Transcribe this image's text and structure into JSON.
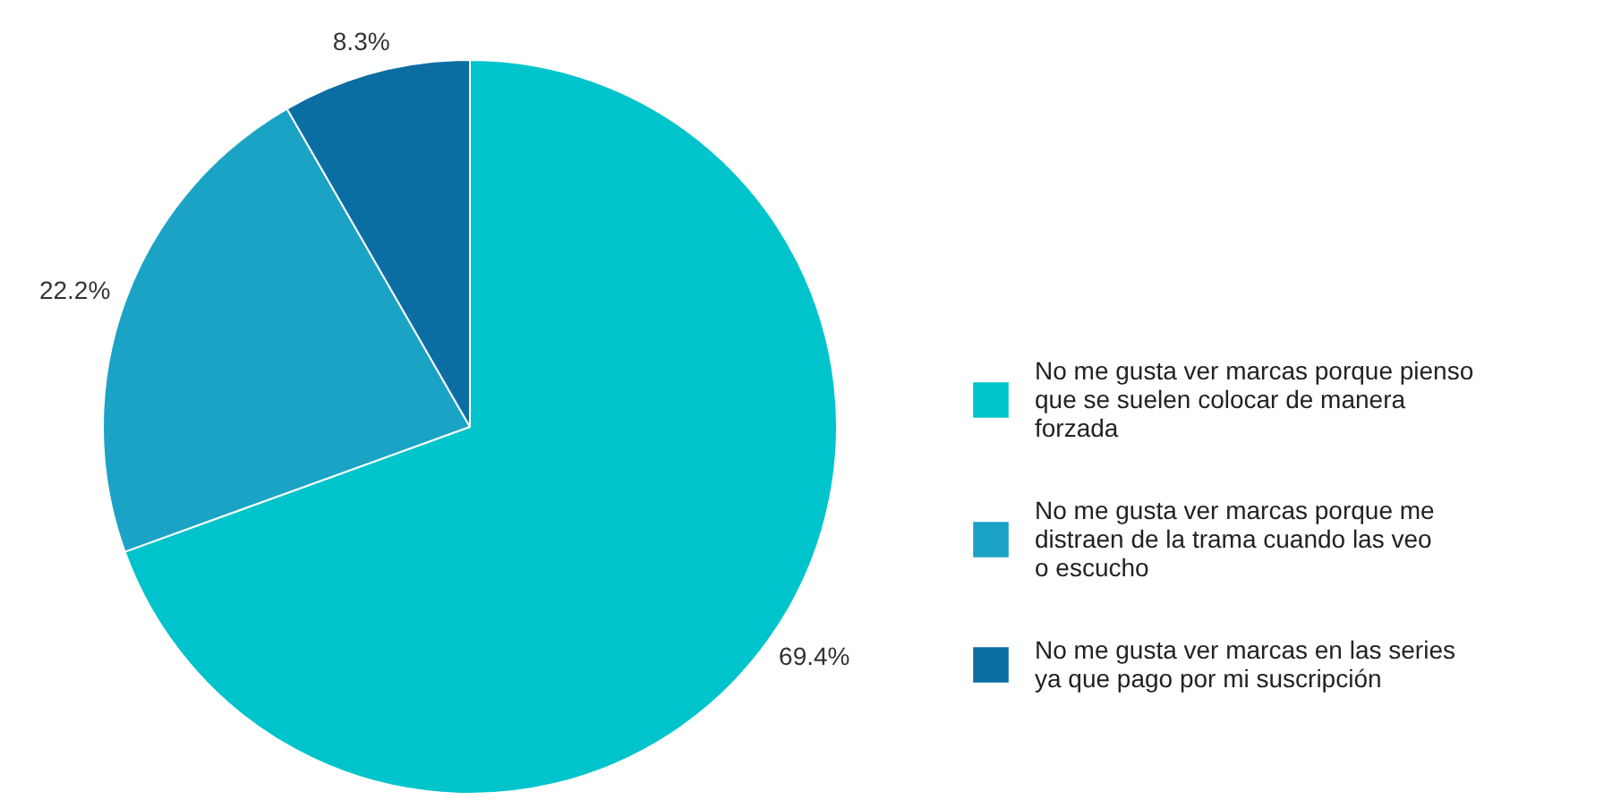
{
  "chart_data": {
    "type": "pie",
    "categories": [
      "No me gusta ver marcas porque pienso que se suelen colocar de manera forzada",
      "No me gusta ver marcas porque me distraen de la trama cuando las veo o escucho",
      "No me gusta ver marcas en las series ya que pago por mi suscripción"
    ],
    "values": [
      69.4,
      22.2,
      8.3
    ],
    "colors": [
      "#00c4cc",
      "#1ba3c6",
      "#0b6ea3"
    ],
    "value_labels": [
      "69.4%",
      "22.2%",
      "8.3%"
    ],
    "legend": "right"
  }
}
